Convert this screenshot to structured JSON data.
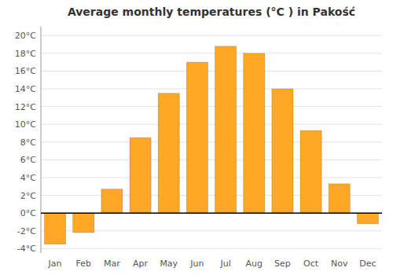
{
  "chart_data": {
    "type": "bar",
    "title": "Average monthly temperatures (°C ) in Pakość",
    "categories": [
      "Jan",
      "Feb",
      "Mar",
      "Apr",
      "May",
      "Jun",
      "Jul",
      "Aug",
      "Sep",
      "Oct",
      "Nov",
      "Dec"
    ],
    "values": [
      -3.5,
      -2.2,
      2.7,
      8.5,
      13.5,
      17.0,
      18.8,
      18.0,
      14.0,
      9.3,
      3.3,
      -1.2
    ],
    "color": "#FFA726",
    "ylim": [
      -4.5,
      21
    ],
    "yticks": [
      {
        "value": -4,
        "label": "-4°C"
      },
      {
        "value": -2,
        "label": "-2°C"
      },
      {
        "value": 0,
        "label": "0°C"
      },
      {
        "value": 2,
        "label": "2°C"
      },
      {
        "value": 4,
        "label": "4°C"
      },
      {
        "value": 6,
        "label": "6°C"
      },
      {
        "value": 8,
        "label": "8°C"
      },
      {
        "value": 10,
        "label": "10°C"
      },
      {
        "value": 12,
        "label": "12°C"
      },
      {
        "value": 14,
        "label": "14°C"
      },
      {
        "value": 16,
        "label": "16°C"
      },
      {
        "value": 18,
        "label": "18°C"
      },
      {
        "value": 20,
        "label": "20°C"
      }
    ],
    "grid": true
  }
}
